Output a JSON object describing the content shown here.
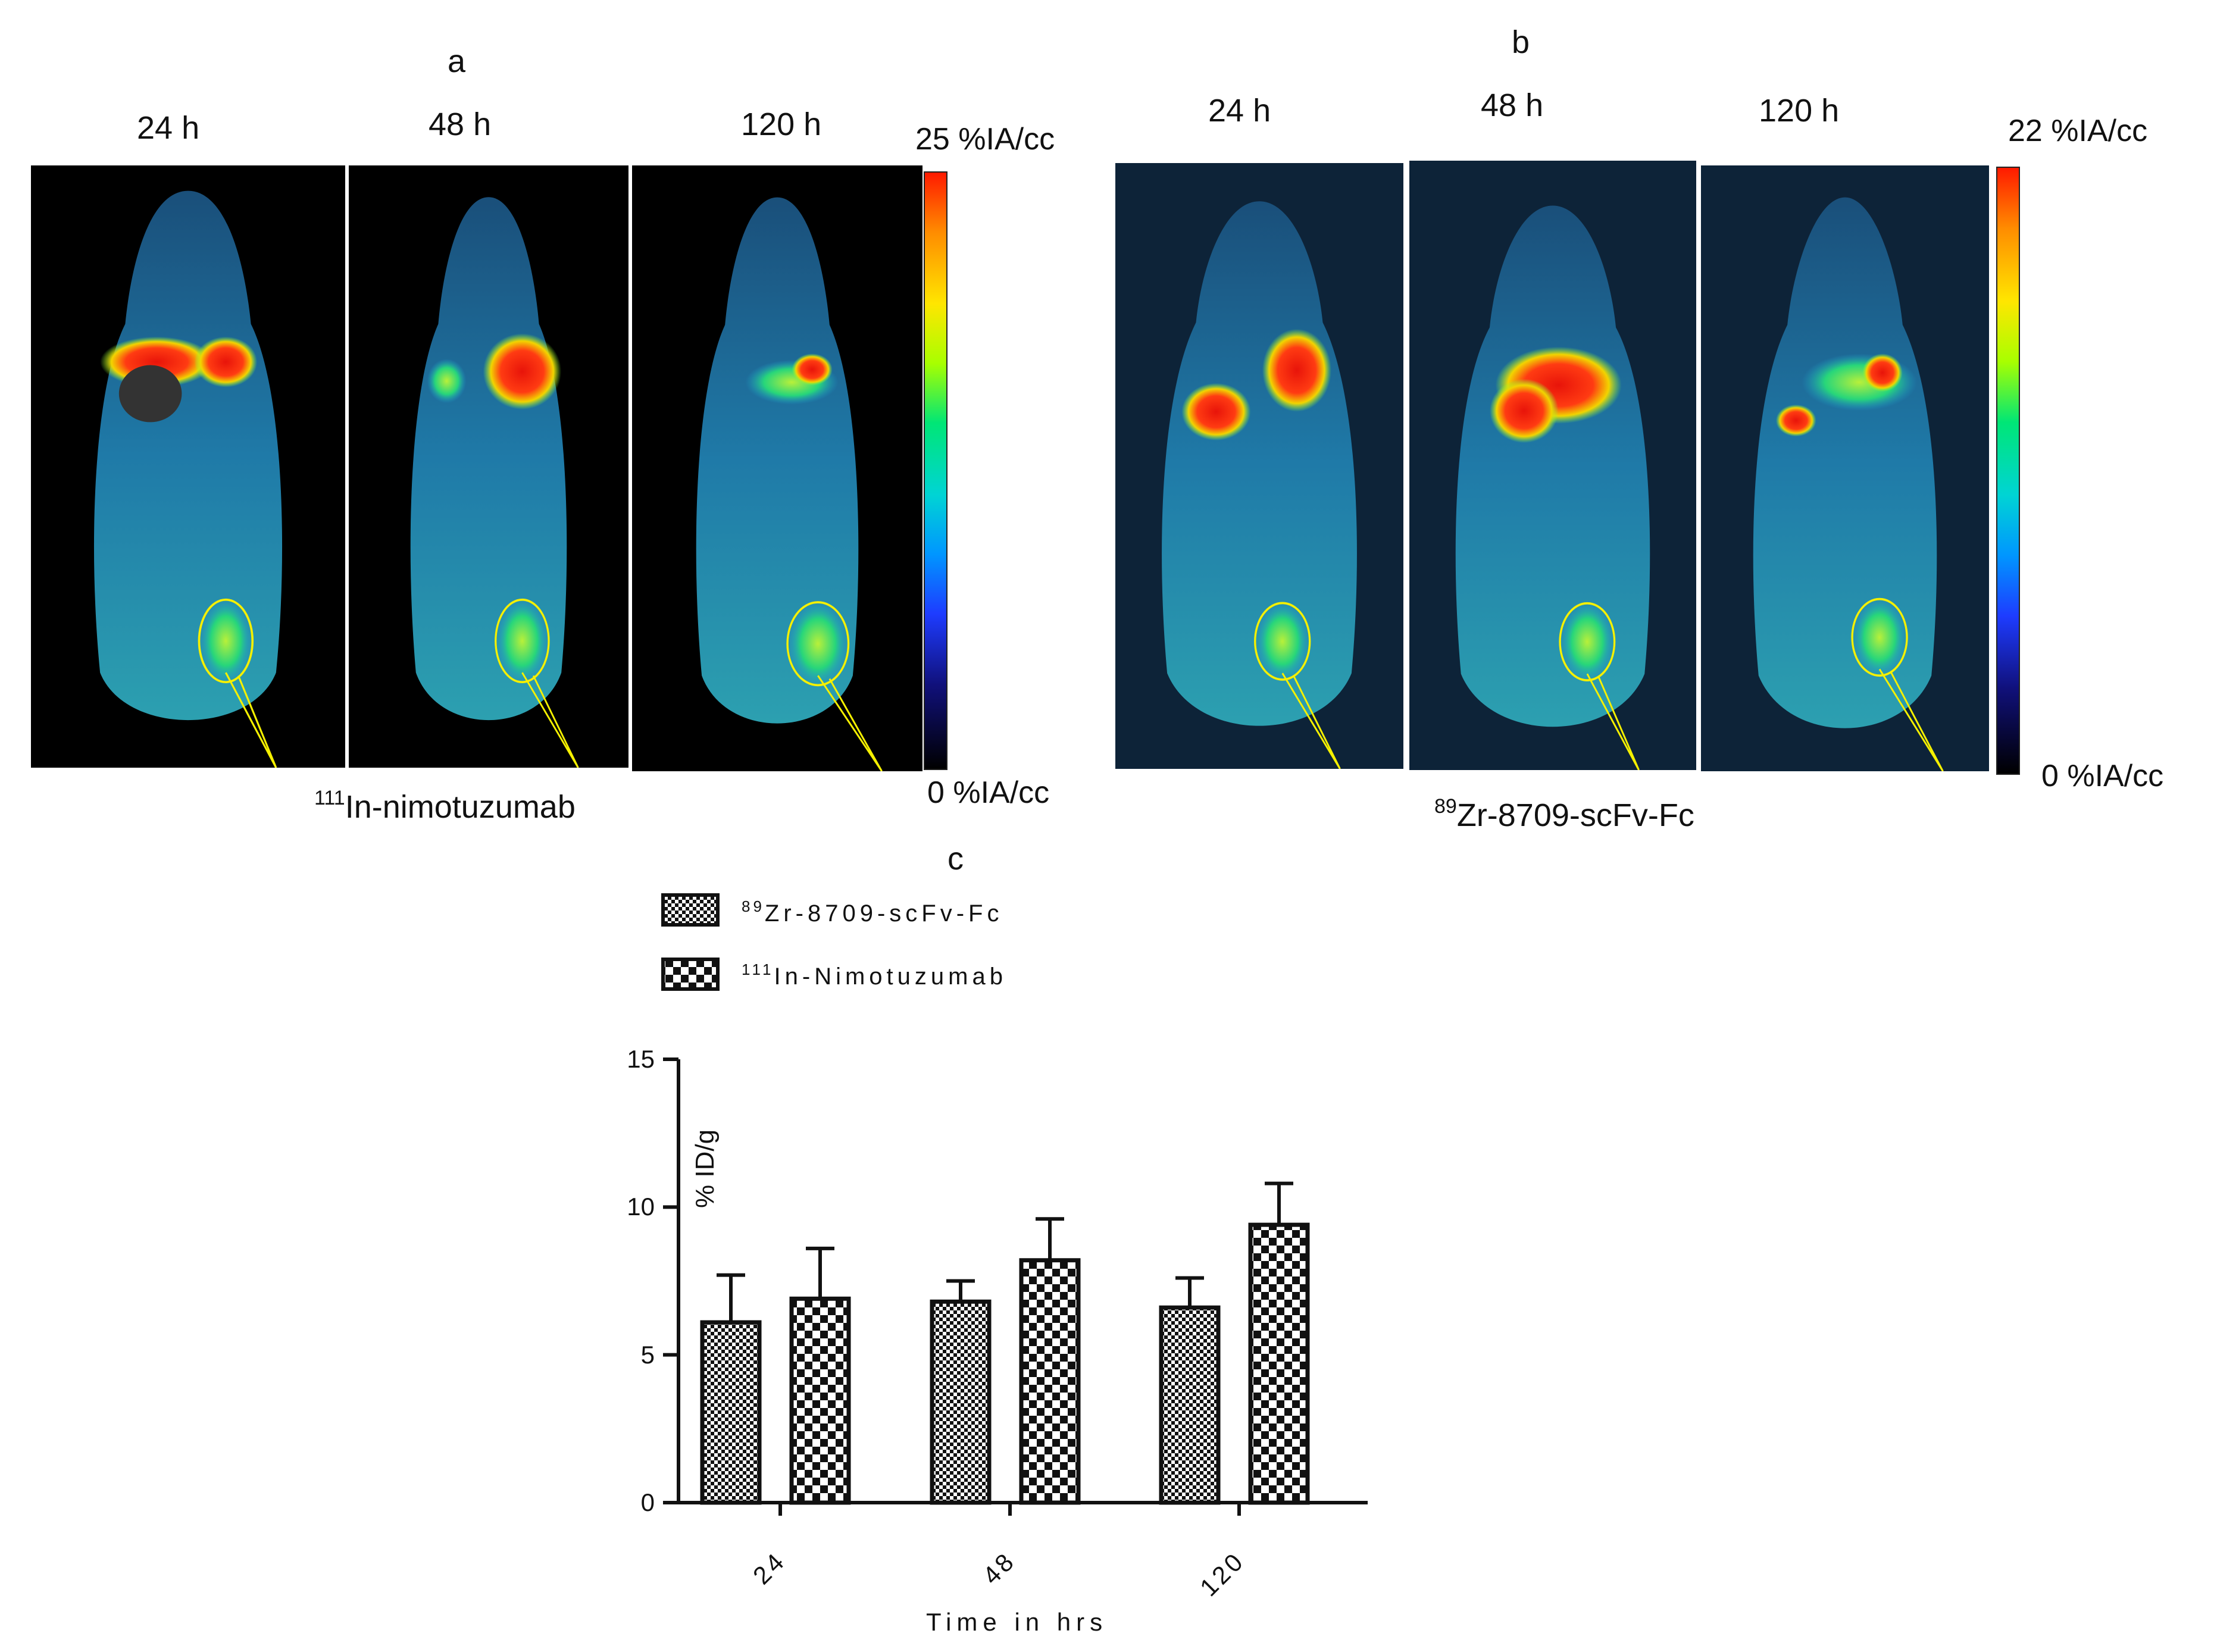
{
  "panel_a": {
    "letter": "a",
    "times": [
      "24 h",
      "48 h",
      "120 h"
    ],
    "scale_max": "25 %IA/cc",
    "scale_min": "0 %IA/cc",
    "tracer_sup": "111",
    "tracer_name": "In-nimotuzumab"
  },
  "panel_b": {
    "letter": "b",
    "times": [
      "24 h",
      "48 h",
      "120 h"
    ],
    "scale_max": "22 %IA/cc",
    "scale_min": "0 %IA/cc",
    "tracer_sup": "89",
    "tracer_name": "Zr-8709-scFv-Fc"
  },
  "panel_c": {
    "letter": "c"
  },
  "chart_data": {
    "type": "bar",
    "categories": [
      "24",
      "48",
      "120"
    ],
    "series": [
      {
        "name": "89Zr-8709-scFv-Fc",
        "legend_sup": "89",
        "legend_text": "Zr-8709-scFv-Fc",
        "pattern": "fine-checker",
        "values": [
          6.1,
          6.8,
          6.6
        ],
        "errors": [
          1.6,
          0.7,
          1.0
        ]
      },
      {
        "name": "111In-Nimotuzumab",
        "legend_sup": "111",
        "legend_text": "In-Nimotuzumab",
        "pattern": "coarse-checker",
        "values": [
          6.9,
          8.2,
          9.4
        ],
        "errors": [
          1.7,
          1.4,
          1.4
        ]
      }
    ],
    "ylim": [
      0,
      15
    ],
    "yticks": [
      "0",
      "5",
      "10",
      "15"
    ],
    "ylabel": "% ID/g",
    "xlabel": "Time in hrs"
  }
}
